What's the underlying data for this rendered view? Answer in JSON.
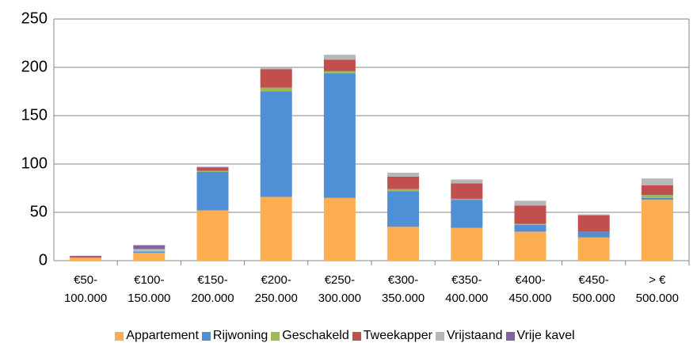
{
  "chart_data": {
    "type": "bar",
    "stacked": true,
    "categories": [
      "€50-\n100.000",
      "€100-\n150.000",
      "€150-\n200.000",
      "€200-\n250.000",
      "€250-\n300.000",
      "€300-\n350.000",
      "€350-\n400.000",
      "€400-\n450.000",
      "€450-\n500.000",
      "> €\n500.000"
    ],
    "series": [
      {
        "name": "Appartement",
        "color": "#fdae52",
        "values": [
          3,
          8,
          52,
          66,
          65,
          35,
          34,
          30,
          24,
          63
        ]
      },
      {
        "name": "Rijwoning",
        "color": "#4f8fd6",
        "values": [
          0,
          1,
          40,
          109,
          129,
          37,
          29,
          7,
          6,
          2
        ]
      },
      {
        "name": "Geschakeld",
        "color": "#9bbb59",
        "values": [
          0,
          1,
          1,
          4,
          2,
          2,
          1,
          1,
          0,
          3
        ]
      },
      {
        "name": "Tweekapper",
        "color": "#c0504d",
        "values": [
          1,
          0,
          3,
          19,
          12,
          13,
          16,
          19,
          17,
          10
        ]
      },
      {
        "name": "Vrijstaand",
        "color": "#b7b7b7",
        "values": [
          0,
          2,
          0,
          2,
          5,
          4,
          4,
          5,
          1,
          7
        ]
      },
      {
        "name": "Vrije kavel",
        "color": "#8064a2",
        "values": [
          1,
          4,
          1,
          0,
          0,
          0,
          0,
          0,
          0,
          0
        ]
      }
    ],
    "ylim": [
      0,
      250
    ],
    "yticks": [
      0,
      50,
      100,
      150,
      200,
      250
    ],
    "grid": true,
    "legend": "bottom"
  }
}
